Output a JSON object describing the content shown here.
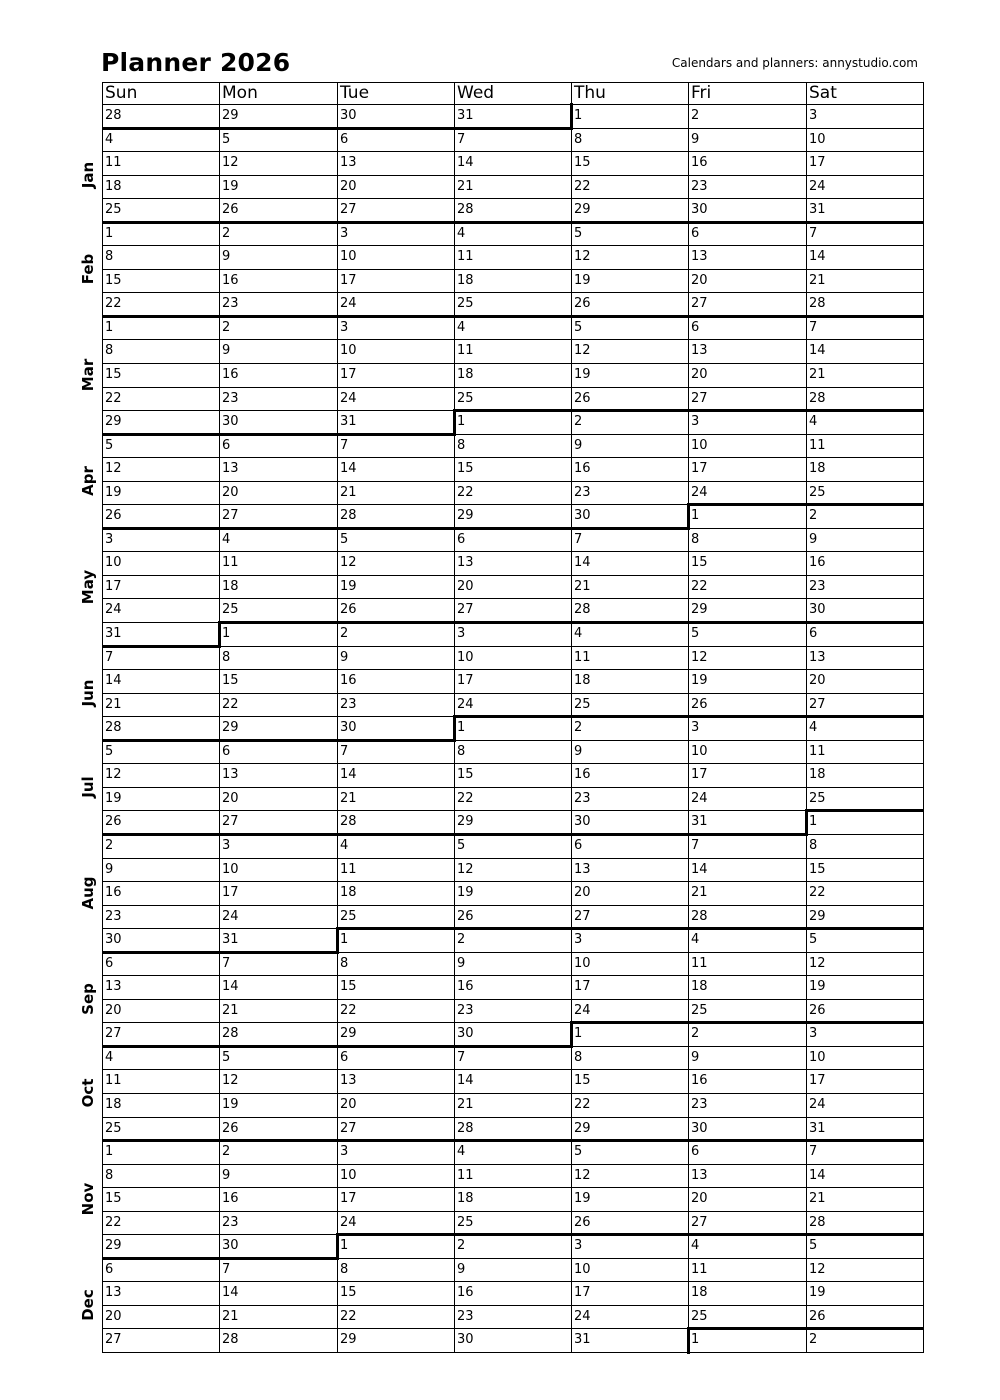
{
  "title": "Planner 2026",
  "credit": "Calendars and planners:  annystudio.com",
  "weekdays": [
    "Sun",
    "Mon",
    "Tue",
    "Wed",
    "Thu",
    "Fri",
    "Sat"
  ],
  "months": [
    "Jan",
    "Feb",
    "Mar",
    "Apr",
    "May",
    "Jun",
    "Jul",
    "Aug",
    "Sep",
    "Oct",
    "Nov",
    "Dec"
  ],
  "weeks": [
    [
      28,
      29,
      30,
      31,
      1,
      2,
      3
    ],
    [
      4,
      5,
      6,
      7,
      8,
      9,
      10
    ],
    [
      11,
      12,
      13,
      14,
      15,
      16,
      17
    ],
    [
      18,
      19,
      20,
      21,
      22,
      23,
      24
    ],
    [
      25,
      26,
      27,
      28,
      29,
      30,
      31
    ],
    [
      1,
      2,
      3,
      4,
      5,
      6,
      7
    ],
    [
      8,
      9,
      10,
      11,
      12,
      13,
      14
    ],
    [
      15,
      16,
      17,
      18,
      19,
      20,
      21
    ],
    [
      22,
      23,
      24,
      25,
      26,
      27,
      28
    ],
    [
      1,
      2,
      3,
      4,
      5,
      6,
      7
    ],
    [
      8,
      9,
      10,
      11,
      12,
      13,
      14
    ],
    [
      15,
      16,
      17,
      18,
      19,
      20,
      21
    ],
    [
      22,
      23,
      24,
      25,
      26,
      27,
      28
    ],
    [
      29,
      30,
      31,
      1,
      2,
      3,
      4
    ],
    [
      5,
      6,
      7,
      8,
      9,
      10,
      11
    ],
    [
      12,
      13,
      14,
      15,
      16,
      17,
      18
    ],
    [
      19,
      20,
      21,
      22,
      23,
      24,
      25
    ],
    [
      26,
      27,
      28,
      29,
      30,
      1,
      2
    ],
    [
      3,
      4,
      5,
      6,
      7,
      8,
      9
    ],
    [
      10,
      11,
      12,
      13,
      14,
      15,
      16
    ],
    [
      17,
      18,
      19,
      20,
      21,
      22,
      23
    ],
    [
      24,
      25,
      26,
      27,
      28,
      29,
      30
    ],
    [
      31,
      1,
      2,
      3,
      4,
      5,
      6
    ],
    [
      7,
      8,
      9,
      10,
      11,
      12,
      13
    ],
    [
      14,
      15,
      16,
      17,
      18,
      19,
      20
    ],
    [
      21,
      22,
      23,
      24,
      25,
      26,
      27
    ],
    [
      28,
      29,
      30,
      1,
      2,
      3,
      4
    ],
    [
      5,
      6,
      7,
      8,
      9,
      10,
      11
    ],
    [
      12,
      13,
      14,
      15,
      16,
      17,
      18
    ],
    [
      19,
      20,
      21,
      22,
      23,
      24,
      25
    ],
    [
      26,
      27,
      28,
      29,
      30,
      31,
      1
    ],
    [
      2,
      3,
      4,
      5,
      6,
      7,
      8
    ],
    [
      9,
      10,
      11,
      12,
      13,
      14,
      15
    ],
    [
      16,
      17,
      18,
      19,
      20,
      21,
      22
    ],
    [
      23,
      24,
      25,
      26,
      27,
      28,
      29
    ],
    [
      30,
      31,
      1,
      2,
      3,
      4,
      5
    ],
    [
      6,
      7,
      8,
      9,
      10,
      11,
      12
    ],
    [
      13,
      14,
      15,
      16,
      17,
      18,
      19
    ],
    [
      20,
      21,
      22,
      23,
      24,
      25,
      26
    ],
    [
      27,
      28,
      29,
      30,
      1,
      2,
      3
    ],
    [
      4,
      5,
      6,
      7,
      8,
      9,
      10
    ],
    [
      11,
      12,
      13,
      14,
      15,
      16,
      17
    ],
    [
      18,
      19,
      20,
      21,
      22,
      23,
      24
    ],
    [
      25,
      26,
      27,
      28,
      29,
      30,
      31
    ],
    [
      1,
      2,
      3,
      4,
      5,
      6,
      7
    ],
    [
      8,
      9,
      10,
      11,
      12,
      13,
      14
    ],
    [
      15,
      16,
      17,
      18,
      19,
      20,
      21
    ],
    [
      22,
      23,
      24,
      25,
      26,
      27,
      28
    ],
    [
      29,
      30,
      1,
      2,
      3,
      4,
      5
    ],
    [
      6,
      7,
      8,
      9,
      10,
      11,
      12
    ],
    [
      13,
      14,
      15,
      16,
      17,
      18,
      19
    ],
    [
      20,
      21,
      22,
      23,
      24,
      25,
      26
    ],
    [
      27,
      28,
      29,
      30,
      31,
      1,
      2
    ]
  ]
}
